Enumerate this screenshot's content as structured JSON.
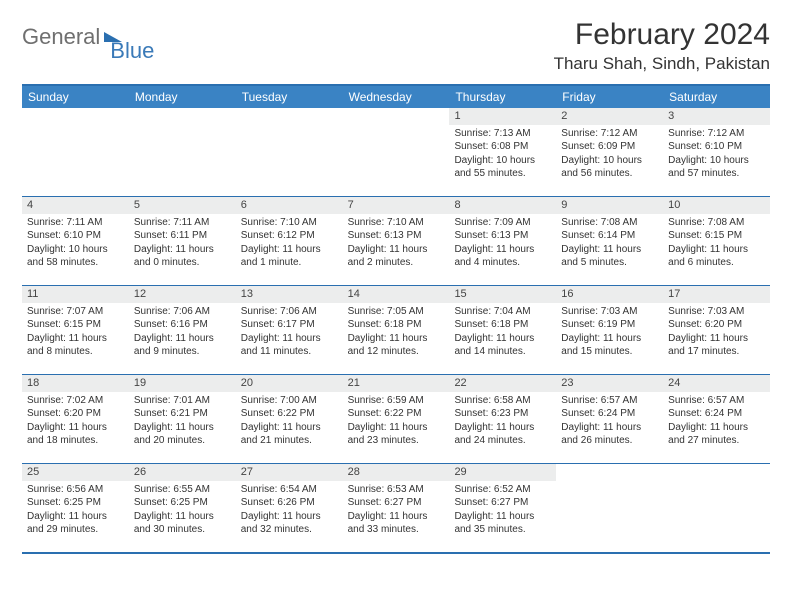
{
  "brand": {
    "word1": "General",
    "word2": "Blue"
  },
  "title": "February 2024",
  "location": "Tharu Shah, Sindh, Pakistan",
  "colors": {
    "header_bg": "#3a83c4",
    "border": "#2a6fb0",
    "daynum_bg": "#eceded",
    "text": "#333333",
    "logo_gray": "#6f6f6f",
    "logo_blue": "#3a7ab8"
  },
  "day_names": [
    "Sunday",
    "Monday",
    "Tuesday",
    "Wednesday",
    "Thursday",
    "Friday",
    "Saturday"
  ],
  "weeks": [
    [
      null,
      null,
      null,
      null,
      {
        "n": "1",
        "sr": "Sunrise: 7:13 AM",
        "ss": "Sunset: 6:08 PM",
        "d1": "Daylight: 10 hours",
        "d2": "and 55 minutes."
      },
      {
        "n": "2",
        "sr": "Sunrise: 7:12 AM",
        "ss": "Sunset: 6:09 PM",
        "d1": "Daylight: 10 hours",
        "d2": "and 56 minutes."
      },
      {
        "n": "3",
        "sr": "Sunrise: 7:12 AM",
        "ss": "Sunset: 6:10 PM",
        "d1": "Daylight: 10 hours",
        "d2": "and 57 minutes."
      }
    ],
    [
      {
        "n": "4",
        "sr": "Sunrise: 7:11 AM",
        "ss": "Sunset: 6:10 PM",
        "d1": "Daylight: 10 hours",
        "d2": "and 58 minutes."
      },
      {
        "n": "5",
        "sr": "Sunrise: 7:11 AM",
        "ss": "Sunset: 6:11 PM",
        "d1": "Daylight: 11 hours",
        "d2": "and 0 minutes."
      },
      {
        "n": "6",
        "sr": "Sunrise: 7:10 AM",
        "ss": "Sunset: 6:12 PM",
        "d1": "Daylight: 11 hours",
        "d2": "and 1 minute."
      },
      {
        "n": "7",
        "sr": "Sunrise: 7:10 AM",
        "ss": "Sunset: 6:13 PM",
        "d1": "Daylight: 11 hours",
        "d2": "and 2 minutes."
      },
      {
        "n": "8",
        "sr": "Sunrise: 7:09 AM",
        "ss": "Sunset: 6:13 PM",
        "d1": "Daylight: 11 hours",
        "d2": "and 4 minutes."
      },
      {
        "n": "9",
        "sr": "Sunrise: 7:08 AM",
        "ss": "Sunset: 6:14 PM",
        "d1": "Daylight: 11 hours",
        "d2": "and 5 minutes."
      },
      {
        "n": "10",
        "sr": "Sunrise: 7:08 AM",
        "ss": "Sunset: 6:15 PM",
        "d1": "Daylight: 11 hours",
        "d2": "and 6 minutes."
      }
    ],
    [
      {
        "n": "11",
        "sr": "Sunrise: 7:07 AM",
        "ss": "Sunset: 6:15 PM",
        "d1": "Daylight: 11 hours",
        "d2": "and 8 minutes."
      },
      {
        "n": "12",
        "sr": "Sunrise: 7:06 AM",
        "ss": "Sunset: 6:16 PM",
        "d1": "Daylight: 11 hours",
        "d2": "and 9 minutes."
      },
      {
        "n": "13",
        "sr": "Sunrise: 7:06 AM",
        "ss": "Sunset: 6:17 PM",
        "d1": "Daylight: 11 hours",
        "d2": "and 11 minutes."
      },
      {
        "n": "14",
        "sr": "Sunrise: 7:05 AM",
        "ss": "Sunset: 6:18 PM",
        "d1": "Daylight: 11 hours",
        "d2": "and 12 minutes."
      },
      {
        "n": "15",
        "sr": "Sunrise: 7:04 AM",
        "ss": "Sunset: 6:18 PM",
        "d1": "Daylight: 11 hours",
        "d2": "and 14 minutes."
      },
      {
        "n": "16",
        "sr": "Sunrise: 7:03 AM",
        "ss": "Sunset: 6:19 PM",
        "d1": "Daylight: 11 hours",
        "d2": "and 15 minutes."
      },
      {
        "n": "17",
        "sr": "Sunrise: 7:03 AM",
        "ss": "Sunset: 6:20 PM",
        "d1": "Daylight: 11 hours",
        "d2": "and 17 minutes."
      }
    ],
    [
      {
        "n": "18",
        "sr": "Sunrise: 7:02 AM",
        "ss": "Sunset: 6:20 PM",
        "d1": "Daylight: 11 hours",
        "d2": "and 18 minutes."
      },
      {
        "n": "19",
        "sr": "Sunrise: 7:01 AM",
        "ss": "Sunset: 6:21 PM",
        "d1": "Daylight: 11 hours",
        "d2": "and 20 minutes."
      },
      {
        "n": "20",
        "sr": "Sunrise: 7:00 AM",
        "ss": "Sunset: 6:22 PM",
        "d1": "Daylight: 11 hours",
        "d2": "and 21 minutes."
      },
      {
        "n": "21",
        "sr": "Sunrise: 6:59 AM",
        "ss": "Sunset: 6:22 PM",
        "d1": "Daylight: 11 hours",
        "d2": "and 23 minutes."
      },
      {
        "n": "22",
        "sr": "Sunrise: 6:58 AM",
        "ss": "Sunset: 6:23 PM",
        "d1": "Daylight: 11 hours",
        "d2": "and 24 minutes."
      },
      {
        "n": "23",
        "sr": "Sunrise: 6:57 AM",
        "ss": "Sunset: 6:24 PM",
        "d1": "Daylight: 11 hours",
        "d2": "and 26 minutes."
      },
      {
        "n": "24",
        "sr": "Sunrise: 6:57 AM",
        "ss": "Sunset: 6:24 PM",
        "d1": "Daylight: 11 hours",
        "d2": "and 27 minutes."
      }
    ],
    [
      {
        "n": "25",
        "sr": "Sunrise: 6:56 AM",
        "ss": "Sunset: 6:25 PM",
        "d1": "Daylight: 11 hours",
        "d2": "and 29 minutes."
      },
      {
        "n": "26",
        "sr": "Sunrise: 6:55 AM",
        "ss": "Sunset: 6:25 PM",
        "d1": "Daylight: 11 hours",
        "d2": "and 30 minutes."
      },
      {
        "n": "27",
        "sr": "Sunrise: 6:54 AM",
        "ss": "Sunset: 6:26 PM",
        "d1": "Daylight: 11 hours",
        "d2": "and 32 minutes."
      },
      {
        "n": "28",
        "sr": "Sunrise: 6:53 AM",
        "ss": "Sunset: 6:27 PM",
        "d1": "Daylight: 11 hours",
        "d2": "and 33 minutes."
      },
      {
        "n": "29",
        "sr": "Sunrise: 6:52 AM",
        "ss": "Sunset: 6:27 PM",
        "d1": "Daylight: 11 hours",
        "d2": "and 35 minutes."
      },
      null,
      null
    ]
  ]
}
